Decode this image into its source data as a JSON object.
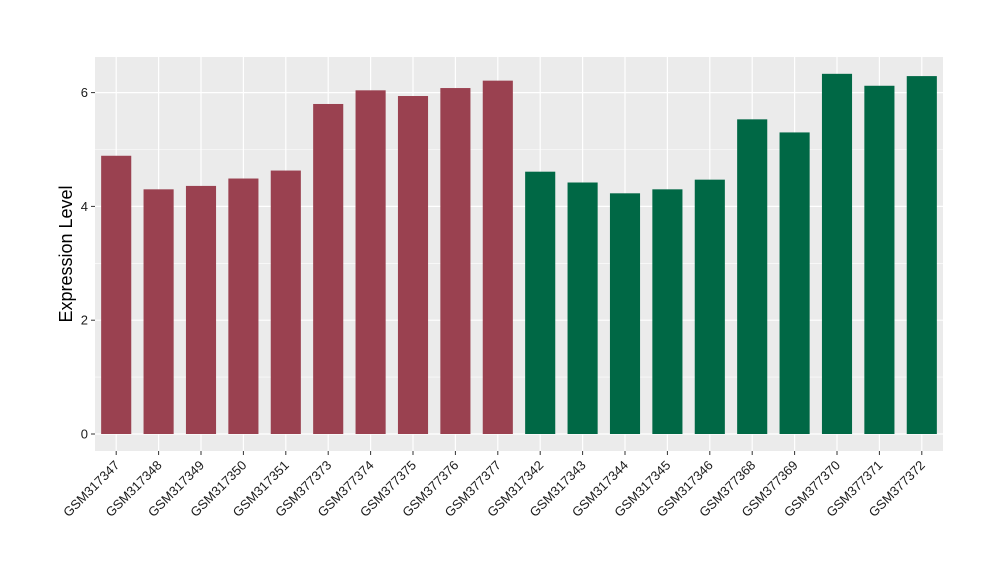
{
  "chart_data": {
    "type": "bar",
    "title": "",
    "xlabel": "",
    "ylabel": "Expression Level",
    "ylim": [
      -0.3,
      6.6
    ],
    "yticks": [
      0,
      2,
      4,
      6
    ],
    "grid": true,
    "legend": "none",
    "panel_color": "#ebebeb",
    "categories": [
      "GSM317347",
      "GSM317348",
      "GSM317349",
      "GSM317350",
      "GSM317351",
      "GSM377373",
      "GSM377374",
      "GSM377375",
      "GSM377376",
      "GSM377377",
      "GSM317342",
      "GSM317343",
      "GSM317344",
      "GSM317345",
      "GSM317346",
      "GSM377368",
      "GSM377369",
      "GSM377370",
      "GSM377371",
      "GSM377372"
    ],
    "values": [
      4.89,
      4.3,
      4.36,
      4.49,
      4.63,
      5.8,
      6.04,
      5.94,
      6.08,
      6.21,
      4.61,
      4.42,
      4.23,
      4.3,
      4.47,
      5.53,
      5.3,
      6.33,
      6.12,
      6.29
    ],
    "colors": [
      "#9a4150",
      "#9a4150",
      "#9a4150",
      "#9a4150",
      "#9a4150",
      "#9a4150",
      "#9a4150",
      "#9a4150",
      "#9a4150",
      "#9a4150",
      "#006845",
      "#006845",
      "#006845",
      "#006845",
      "#006845",
      "#006845",
      "#006845",
      "#006845",
      "#006845",
      "#006845"
    ]
  }
}
